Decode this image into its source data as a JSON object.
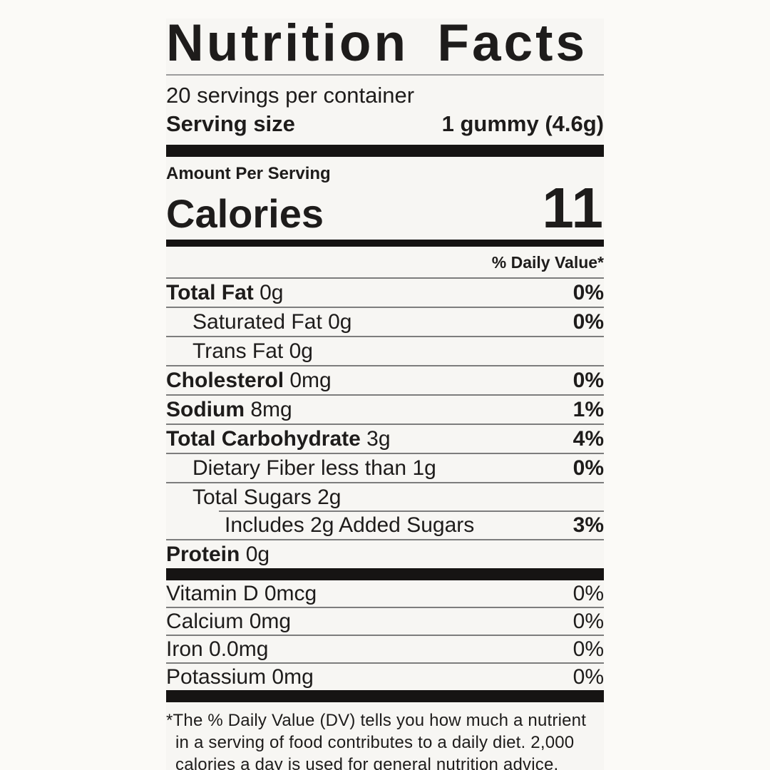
{
  "title": "Nutrition Facts",
  "servings_per_container": "20 servings per container",
  "serving_size": {
    "label": "Serving size",
    "value": "1 gummy (4.6g)"
  },
  "amount_per_serving": "Amount Per Serving",
  "calories": {
    "label": "Calories",
    "value": "11"
  },
  "daily_value_header": "% Daily Value*",
  "nutrients": [
    {
      "bold": "Total Fat",
      "rest": " 0g",
      "dv": "0%"
    },
    {
      "bold": "",
      "rest": "Saturated Fat 0g",
      "dv": "0%"
    },
    {
      "bold": "",
      "rest": "Trans Fat 0g",
      "dv": ""
    },
    {
      "bold": "Cholesterol",
      "rest": " 0mg",
      "dv": "0%"
    },
    {
      "bold": "Sodium",
      "rest": " 8mg",
      "dv": "1%"
    },
    {
      "bold": "Total Carbohydrate",
      "rest": " 3g",
      "dv": "4%"
    },
    {
      "bold": "",
      "rest": "Dietary Fiber less than 1g",
      "dv": "0%"
    },
    {
      "bold": "",
      "rest": "Total Sugars 2g",
      "dv": ""
    },
    {
      "bold": "",
      "rest": "Includes 2g Added Sugars",
      "dv": "3%"
    },
    {
      "bold": "Protein",
      "rest": " 0g",
      "dv": ""
    }
  ],
  "micronutrients": [
    {
      "label": "Vitamin D 0mcg",
      "dv": "0%"
    },
    {
      "label": "Calcium 0mg",
      "dv": "0%"
    },
    {
      "label": "Iron 0.0mg",
      "dv": "0%"
    },
    {
      "label": "Potassium 0mg",
      "dv": "0%"
    }
  ],
  "footnote": "*The % Daily Value (DV) tells you how much a nutrient in a serving of food contributes to a daily diet. 2,000 calories a day is used for general nutrition advice.",
  "colors": {
    "text": "#1e1c1b",
    "bar": "#161413",
    "hairline": "#7d7d7d",
    "background": "#f7f6f3"
  }
}
